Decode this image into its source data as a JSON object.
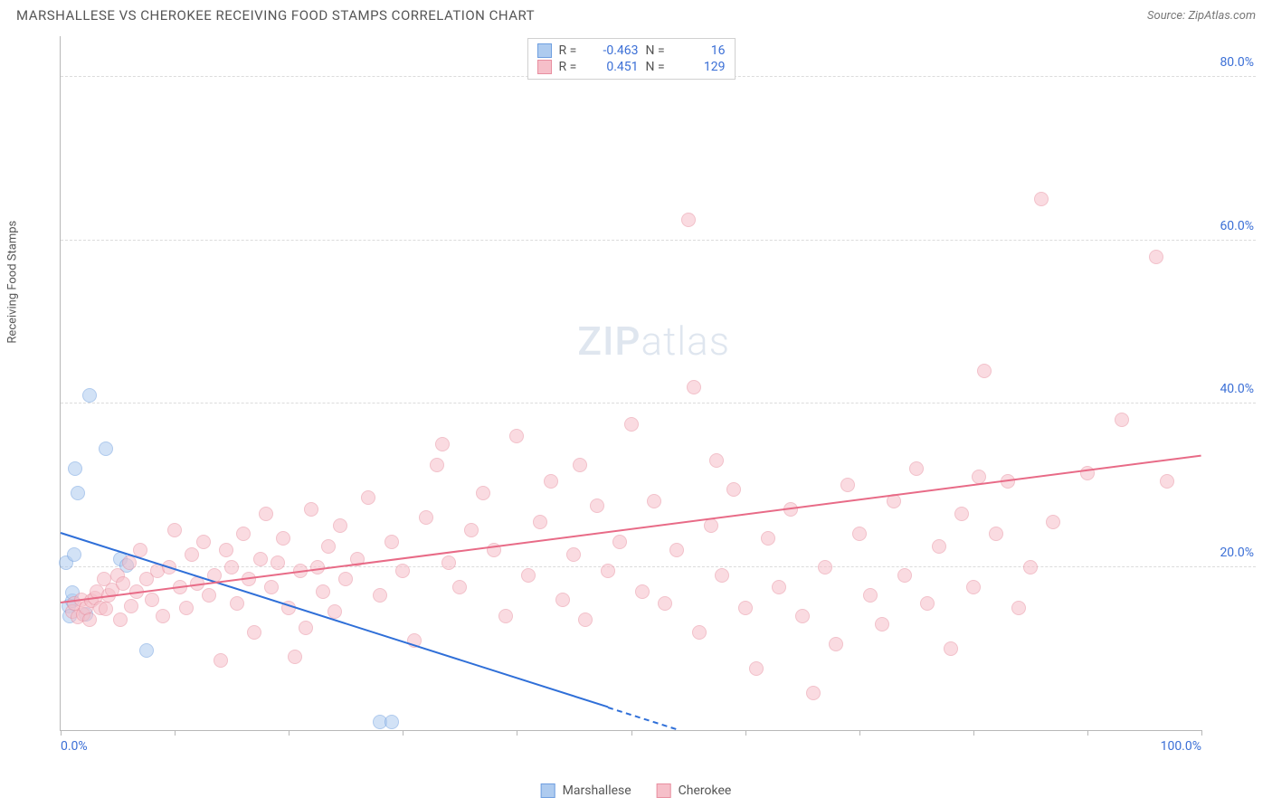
{
  "header": {
    "title": "MARSHALLESE VS CHEROKEE RECEIVING FOOD STAMPS CORRELATION CHART",
    "source_label": "Source:",
    "source_name": "ZipAtlas.com"
  },
  "watermark": {
    "zip": "ZIP",
    "atlas": "atlas"
  },
  "chart": {
    "type": "scatter",
    "y_axis_label": "Receiving Food Stamps",
    "xlim": [
      0,
      100
    ],
    "ylim": [
      0,
      85
    ],
    "xticks": [
      0,
      10,
      20,
      30,
      40,
      50,
      60,
      70,
      80,
      90,
      100
    ],
    "xtick_labels": {
      "0": "0.0%",
      "100": "100.0%"
    },
    "yticks": [
      20,
      40,
      60,
      80
    ],
    "ytick_labels": [
      "20.0%",
      "40.0%",
      "60.0%",
      "80.0%"
    ],
    "background_color": "#ffffff",
    "grid_color": "#dcdcdc",
    "axis_color": "#b8b8b8",
    "tick_label_color": "#3b6fd6",
    "point_radius": 8,
    "series": [
      {
        "key": "marshallese",
        "label": "Marshallese",
        "fill": "#aecbef",
        "stroke": "#6f9fe0",
        "fill_opacity": 0.55,
        "r_label": "R =",
        "r_value": "-0.463",
        "n_label": "N =",
        "n_value": "16",
        "trend": {
          "x1": 0,
          "y1": 24,
          "x2": 54,
          "y2": 0,
          "color": "#2f6fd8",
          "dash_after_x": 48
        },
        "points": [
          [
            0.5,
            20.5
          ],
          [
            0.7,
            15.2
          ],
          [
            0.8,
            14.0
          ],
          [
            1.0,
            15.8
          ],
          [
            1.0,
            16.8
          ],
          [
            1.2,
            21.5
          ],
          [
            1.3,
            32.0
          ],
          [
            1.5,
            29.0
          ],
          [
            2.2,
            14.2
          ],
          [
            2.5,
            41.0
          ],
          [
            4.0,
            34.5
          ],
          [
            5.2,
            21.0
          ],
          [
            5.8,
            20.2
          ],
          [
            7.5,
            9.8
          ],
          [
            28.0,
            1.0
          ],
          [
            29.0,
            1.0
          ]
        ]
      },
      {
        "key": "cherokee",
        "label": "Cherokee",
        "fill": "#f6bfc9",
        "stroke": "#e88fa0",
        "fill_opacity": 0.55,
        "r_label": "R =",
        "r_value": "0.451",
        "n_label": "N =",
        "n_value": "129",
        "trend": {
          "x1": 0,
          "y1": 15.5,
          "x2": 100,
          "y2": 33.5,
          "color": "#e86b87"
        },
        "points": [
          [
            1,
            14.5
          ],
          [
            1.2,
            15.5
          ],
          [
            1.5,
            13.8
          ],
          [
            1.8,
            16.0
          ],
          [
            2,
            14.2
          ],
          [
            2.2,
            15.0
          ],
          [
            2.5,
            13.5
          ],
          [
            2.7,
            15.8
          ],
          [
            3,
            16.2
          ],
          [
            3.2,
            17.0
          ],
          [
            3.5,
            15.0
          ],
          [
            3.8,
            18.5
          ],
          [
            4,
            14.8
          ],
          [
            4.2,
            16.5
          ],
          [
            4.5,
            17.2
          ],
          [
            5,
            19.0
          ],
          [
            5.2,
            13.5
          ],
          [
            5.5,
            18.0
          ],
          [
            6,
            20.5
          ],
          [
            6.2,
            15.2
          ],
          [
            6.7,
            17.0
          ],
          [
            7,
            22.0
          ],
          [
            7.5,
            18.5
          ],
          [
            8,
            16.0
          ],
          [
            8.5,
            19.5
          ],
          [
            9,
            14.0
          ],
          [
            9.5,
            20.0
          ],
          [
            10,
            24.5
          ],
          [
            10.5,
            17.5
          ],
          [
            11,
            15.0
          ],
          [
            11.5,
            21.5
          ],
          [
            12,
            18.0
          ],
          [
            12.5,
            23.0
          ],
          [
            13,
            16.5
          ],
          [
            13.5,
            19.0
          ],
          [
            14,
            8.5
          ],
          [
            14.5,
            22.0
          ],
          [
            15,
            20.0
          ],
          [
            15.5,
            15.5
          ],
          [
            16,
            24.0
          ],
          [
            16.5,
            18.5
          ],
          [
            17,
            12.0
          ],
          [
            17.5,
            21.0
          ],
          [
            18,
            26.5
          ],
          [
            18.5,
            17.5
          ],
          [
            19,
            20.5
          ],
          [
            19.5,
            23.5
          ],
          [
            20,
            15.0
          ],
          [
            20.5,
            9.0
          ],
          [
            21,
            19.5
          ],
          [
            21.5,
            12.5
          ],
          [
            22,
            27.0
          ],
          [
            22.5,
            20.0
          ],
          [
            23,
            17.0
          ],
          [
            23.5,
            22.5
          ],
          [
            24,
            14.5
          ],
          [
            24.5,
            25.0
          ],
          [
            25,
            18.5
          ],
          [
            26,
            21.0
          ],
          [
            27,
            28.5
          ],
          [
            28,
            16.5
          ],
          [
            29,
            23.0
          ],
          [
            30,
            19.5
          ],
          [
            31,
            11.0
          ],
          [
            32,
            26.0
          ],
          [
            33,
            32.5
          ],
          [
            33.5,
            35.0
          ],
          [
            34,
            20.5
          ],
          [
            35,
            17.5
          ],
          [
            36,
            24.5
          ],
          [
            37,
            29.0
          ],
          [
            38,
            22.0
          ],
          [
            39,
            14.0
          ],
          [
            40,
            36.0
          ],
          [
            41,
            19.0
          ],
          [
            42,
            25.5
          ],
          [
            43,
            30.5
          ],
          [
            44,
            16.0
          ],
          [
            45,
            21.5
          ],
          [
            45.5,
            32.5
          ],
          [
            46,
            13.5
          ],
          [
            47,
            27.5
          ],
          [
            48,
            19.5
          ],
          [
            49,
            23.0
          ],
          [
            50,
            37.5
          ],
          [
            51,
            17.0
          ],
          [
            52,
            28.0
          ],
          [
            53,
            15.5
          ],
          [
            54,
            22.0
          ],
          [
            55,
            62.5
          ],
          [
            55.5,
            42.0
          ],
          [
            56,
            12.0
          ],
          [
            57,
            25.0
          ],
          [
            57.5,
            33.0
          ],
          [
            58,
            19.0
          ],
          [
            59,
            29.5
          ],
          [
            60,
            15.0
          ],
          [
            61,
            7.5
          ],
          [
            62,
            23.5
          ],
          [
            63,
            17.5
          ],
          [
            64,
            27.0
          ],
          [
            65,
            14.0
          ],
          [
            66,
            4.5
          ],
          [
            67,
            20.0
          ],
          [
            68,
            10.5
          ],
          [
            69,
            30.0
          ],
          [
            70,
            24.0
          ],
          [
            71,
            16.5
          ],
          [
            72,
            13.0
          ],
          [
            73,
            28.0
          ],
          [
            74,
            19.0
          ],
          [
            75,
            32.0
          ],
          [
            76,
            15.5
          ],
          [
            77,
            22.5
          ],
          [
            78,
            10.0
          ],
          [
            79,
            26.5
          ],
          [
            80,
            17.5
          ],
          [
            80.5,
            31.0
          ],
          [
            81,
            44.0
          ],
          [
            82,
            24.0
          ],
          [
            83,
            30.5
          ],
          [
            84,
            15.0
          ],
          [
            85,
            20.0
          ],
          [
            86,
            65.0
          ],
          [
            87,
            25.5
          ],
          [
            90,
            31.5
          ],
          [
            93,
            38.0
          ],
          [
            96,
            58.0
          ],
          [
            97,
            30.5
          ]
        ]
      }
    ],
    "legend_bottom": [
      {
        "key": "marshallese",
        "label": "Marshallese"
      },
      {
        "key": "cherokee",
        "label": "Cherokee"
      }
    ]
  }
}
